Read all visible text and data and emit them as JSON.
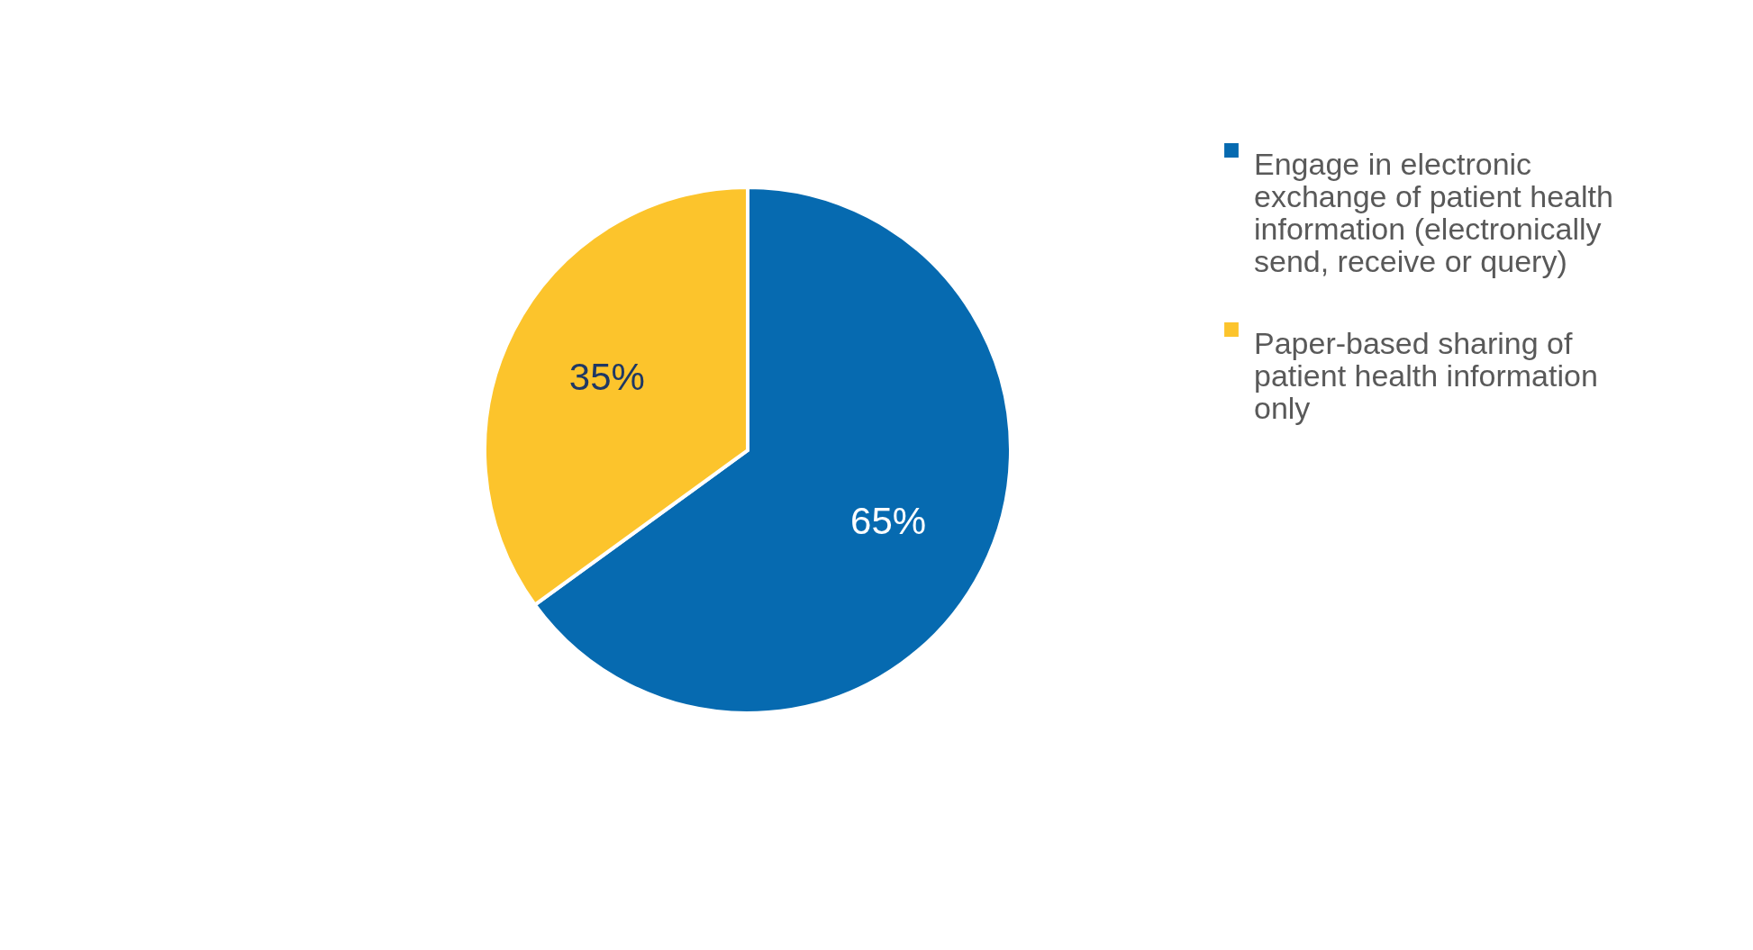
{
  "chart_data": {
    "type": "pie",
    "categories": [
      "Engage in electronic exchange of patient health information  (electronically send, receive or query)",
      "Paper-based sharing of patient health information only"
    ],
    "values": [
      65,
      35
    ],
    "colors": [
      "#066ab0",
      "#fcc42c"
    ],
    "value_labels": [
      "65%",
      "35%"
    ],
    "legend": "right"
  }
}
